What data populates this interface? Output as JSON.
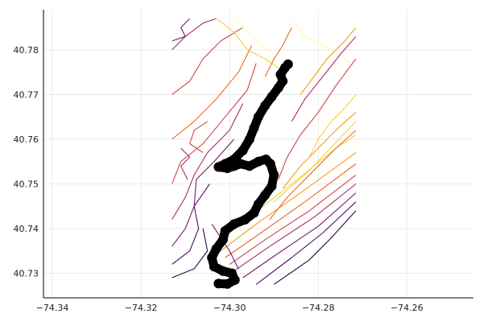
{
  "chart_data": {
    "type": "line",
    "title": "",
    "xlabel": "",
    "ylabel": "",
    "xlim": [
      -74.342,
      -74.245
    ],
    "ylim": [
      40.7245,
      40.789
    ],
    "x_ticks": [
      -74.34,
      -74.32,
      -74.3,
      -74.28,
      -74.26
    ],
    "x_tick_labels": [
      "−74.34",
      "−74.32",
      "−74.30",
      "−74.28",
      "−74.26"
    ],
    "y_ticks": [
      40.73,
      40.74,
      40.75,
      40.76,
      40.77,
      40.78
    ],
    "y_tick_labels": [
      "40.73",
      "40.74",
      "40.75",
      "40.76",
      "40.77",
      "40.78"
    ],
    "grid": true,
    "legend": "none",
    "background": "#ffffff",
    "contour_region": {
      "x": [
        -74.313,
        -74.2715
      ],
      "y": [
        40.727,
        40.787
      ]
    },
    "contour_colors": [
      "#1b0c41",
      "#4a0c6b",
      "#781c6d",
      "#a52c60",
      "#cf4446",
      "#ed6925",
      "#fb9b06",
      "#f7d13d",
      "#fcffa4"
    ],
    "contours": [
      {
        "level": 0,
        "points": [
          [
            -74.29,
            40.7275
          ],
          [
            -74.282,
            40.733
          ],
          [
            -74.277,
            40.738
          ],
          [
            -74.2715,
            40.744
          ]
        ]
      },
      {
        "level": 1,
        "points": [
          [
            -74.294,
            40.7275
          ],
          [
            -74.286,
            40.7335
          ],
          [
            -74.279,
            40.739
          ],
          [
            -74.2715,
            40.746
          ]
        ]
      },
      {
        "level": 2,
        "points": [
          [
            -74.297,
            40.729
          ],
          [
            -74.289,
            40.7345
          ],
          [
            -74.28,
            40.7405
          ],
          [
            -74.2715,
            40.748
          ]
        ]
      },
      {
        "level": 3,
        "points": [
          [
            -74.299,
            40.7305
          ],
          [
            -74.291,
            40.736
          ],
          [
            -74.281,
            40.7425
          ],
          [
            -74.2715,
            40.75
          ]
        ]
      },
      {
        "level": 4,
        "points": [
          [
            -74.3,
            40.732
          ],
          [
            -74.292,
            40.7375
          ],
          [
            -74.282,
            40.744
          ],
          [
            -74.2715,
            40.752
          ]
        ]
      },
      {
        "level": 5,
        "points": [
          [
            -74.301,
            40.7335
          ],
          [
            -74.293,
            40.739
          ],
          [
            -74.283,
            40.746
          ],
          [
            -74.2715,
            40.7545
          ]
        ]
      },
      {
        "level": 6,
        "points": [
          [
            -74.302,
            40.735
          ],
          [
            -74.294,
            40.741
          ],
          [
            -74.284,
            40.748
          ],
          [
            -74.2715,
            40.757
          ]
        ]
      },
      {
        "level": 7,
        "points": [
          [
            -74.295,
            40.743
          ],
          [
            -74.286,
            40.75
          ],
          [
            -74.276,
            40.758
          ],
          [
            -74.2715,
            40.761
          ]
        ]
      },
      {
        "level": 7,
        "points": [
          [
            -74.29,
            40.746
          ],
          [
            -74.282,
            40.753
          ],
          [
            -74.2715,
            40.764
          ]
        ]
      },
      {
        "level": 0,
        "points": [
          [
            -74.313,
            40.729
          ],
          [
            -74.308,
            40.731
          ],
          [
            -74.305,
            40.735
          ],
          [
            -74.306,
            40.74
          ]
        ]
      },
      {
        "level": 1,
        "points": [
          [
            -74.313,
            40.732
          ],
          [
            -74.309,
            40.735
          ],
          [
            -74.307,
            40.74
          ],
          [
            -74.308,
            40.745
          ],
          [
            -74.3045,
            40.75
          ]
        ]
      },
      {
        "level": 2,
        "points": [
          [
            -74.313,
            40.736
          ],
          [
            -74.31,
            40.74
          ],
          [
            -74.308,
            40.745
          ],
          [
            -74.3075,
            40.751
          ],
          [
            -74.3035,
            40.755
          ],
          [
            -74.299,
            40.76
          ]
        ]
      },
      {
        "level": 3,
        "points": [
          [
            -74.313,
            40.742
          ],
          [
            -74.31,
            40.747
          ],
          [
            -74.308,
            40.752
          ],
          [
            -74.305,
            40.757
          ],
          [
            -74.3,
            40.762
          ],
          [
            -74.297,
            40.768
          ]
        ]
      },
      {
        "level": 4,
        "points": [
          [
            -74.313,
            40.75
          ],
          [
            -74.311,
            40.755
          ],
          [
            -74.306,
            40.759
          ],
          [
            -74.301,
            40.765
          ],
          [
            -74.296,
            40.771
          ],
          [
            -74.294,
            40.777
          ]
        ]
      },
      {
        "level": 5,
        "points": [
          [
            -74.313,
            40.76
          ],
          [
            -74.308,
            40.764
          ],
          [
            -74.303,
            40.769
          ],
          [
            -74.298,
            40.775
          ],
          [
            -74.295,
            40.781
          ]
        ]
      },
      {
        "level": 4,
        "points": [
          [
            -74.313,
            40.77
          ],
          [
            -74.309,
            40.773
          ],
          [
            -74.306,
            40.778
          ],
          [
            -74.302,
            40.782
          ],
          [
            -74.297,
            40.785
          ]
        ]
      },
      {
        "level": 3,
        "points": [
          [
            -74.313,
            40.78
          ],
          [
            -74.31,
            40.783
          ],
          [
            -74.306,
            40.786
          ],
          [
            -74.303,
            40.787
          ]
        ]
      },
      {
        "level": 2,
        "points": [
          [
            -74.309,
            40.787
          ],
          [
            -74.311,
            40.785
          ],
          [
            -74.31,
            40.783
          ],
          [
            -74.313,
            40.782
          ]
        ]
      },
      {
        "level": 7,
        "points": [
          [
            -74.303,
            40.787
          ],
          [
            -74.299,
            40.784
          ],
          [
            -74.296,
            40.78
          ],
          [
            -74.292,
            40.778
          ],
          [
            -74.289,
            40.776
          ]
        ]
      },
      {
        "level": 8,
        "points": [
          [
            -74.299,
            40.787
          ],
          [
            -74.296,
            40.784
          ],
          [
            -74.293,
            40.781
          ],
          [
            -74.29,
            40.779
          ]
        ]
      },
      {
        "level": 8,
        "points": [
          [
            -74.286,
            40.787
          ],
          [
            -74.283,
            40.783
          ],
          [
            -74.279,
            40.781
          ],
          [
            -74.274,
            40.778
          ],
          [
            -74.2715,
            40.776
          ]
        ]
      },
      {
        "level": 7,
        "points": [
          [
            -74.2715,
            40.77
          ],
          [
            -74.274,
            40.767
          ],
          [
            -74.277,
            40.764
          ],
          [
            -74.28,
            40.76
          ],
          [
            -74.282,
            40.756
          ]
        ]
      },
      {
        "level": 6,
        "points": [
          [
            -74.2715,
            40.766
          ],
          [
            -74.275,
            40.763
          ],
          [
            -74.279,
            40.759
          ],
          [
            -74.284,
            40.754
          ],
          [
            -74.288,
            40.749
          ]
        ]
      },
      {
        "level": 5,
        "points": [
          [
            -74.2715,
            40.762
          ],
          [
            -74.276,
            40.758
          ],
          [
            -74.281,
            40.753
          ],
          [
            -74.287,
            40.747
          ],
          [
            -74.291,
            40.742
          ]
        ]
      },
      {
        "level": 4,
        "points": [
          [
            -74.2715,
            40.778
          ],
          [
            -74.276,
            40.772
          ],
          [
            -74.28,
            40.766
          ],
          [
            -74.284,
            40.761
          ],
          [
            -74.287,
            40.756
          ],
          [
            -74.289,
            40.751
          ]
        ]
      },
      {
        "level": 3,
        "points": [
          [
            -74.2715,
            40.783
          ],
          [
            -74.275,
            40.779
          ],
          [
            -74.279,
            40.774
          ],
          [
            -74.283,
            40.769
          ],
          [
            -74.286,
            40.764
          ]
        ]
      },
      {
        "level": 6,
        "points": [
          [
            -74.2715,
            40.785
          ],
          [
            -74.274,
            40.782
          ],
          [
            -74.278,
            40.778
          ],
          [
            -74.281,
            40.774
          ],
          [
            -74.284,
            40.77
          ]
        ]
      },
      {
        "level": 5,
        "points": [
          [
            -74.286,
            40.785
          ],
          [
            -74.288,
            40.781
          ],
          [
            -74.29,
            40.778
          ],
          [
            -74.292,
            40.774
          ]
        ]
      },
      {
        "level": 4,
        "points": [
          [
            -74.305,
            40.764
          ],
          [
            -74.308,
            40.762
          ],
          [
            -74.309,
            40.759
          ],
          [
            -74.306,
            40.757
          ]
        ]
      },
      {
        "level": 3,
        "points": [
          [
            -74.311,
            40.758
          ],
          [
            -74.309,
            40.756
          ],
          [
            -74.311,
            40.754
          ],
          [
            -74.3095,
            40.751
          ]
        ]
      },
      {
        "level": 2,
        "points": [
          [
            -74.304,
            40.741
          ],
          [
            -74.302,
            40.738
          ],
          [
            -74.3,
            40.735
          ],
          [
            -74.298,
            40.731
          ]
        ]
      }
    ],
    "path": {
      "name": "",
      "color": "#000000",
      "points": [
        [
          -74.3025,
          40.7277
        ],
        [
          -74.3005,
          40.7276
        ],
        [
          -74.2988,
          40.7285
        ],
        [
          -74.2995,
          40.73
        ],
        [
          -74.3015,
          40.7305
        ],
        [
          -74.3035,
          40.7315
        ],
        [
          -74.304,
          40.7335
        ],
        [
          -74.303,
          40.7355
        ],
        [
          -74.3015,
          40.7375
        ],
        [
          -74.301,
          40.7395
        ],
        [
          -74.299,
          40.741
        ],
        [
          -74.2965,
          40.742
        ],
        [
          -74.2945,
          40.7435
        ],
        [
          -74.2935,
          40.7455
        ],
        [
          -74.292,
          40.7475
        ],
        [
          -74.2905,
          40.7495
        ],
        [
          -74.29,
          40.752
        ],
        [
          -74.2908,
          40.7545
        ],
        [
          -74.2918,
          40.7555
        ],
        [
          -74.2935,
          40.755
        ],
        [
          -74.2955,
          40.754
        ],
        [
          -74.2975,
          40.7545
        ],
        [
          -74.299,
          40.754
        ],
        [
          -74.3005,
          40.7535
        ],
        [
          -74.3025,
          40.7538
        ],
        [
          -74.301,
          40.7545
        ],
        [
          -74.299,
          40.7555
        ],
        [
          -74.297,
          40.7575
        ],
        [
          -74.2955,
          40.76
        ],
        [
          -74.2945,
          40.7625
        ],
        [
          -74.2935,
          40.765
        ],
        [
          -74.292,
          40.7675
        ],
        [
          -74.2905,
          40.7695
        ],
        [
          -74.289,
          40.7715
        ],
        [
          -74.288,
          40.773
        ],
        [
          -74.2885,
          40.7745
        ],
        [
          -74.2875,
          40.776
        ],
        [
          -74.2868,
          40.7768
        ]
      ]
    }
  }
}
